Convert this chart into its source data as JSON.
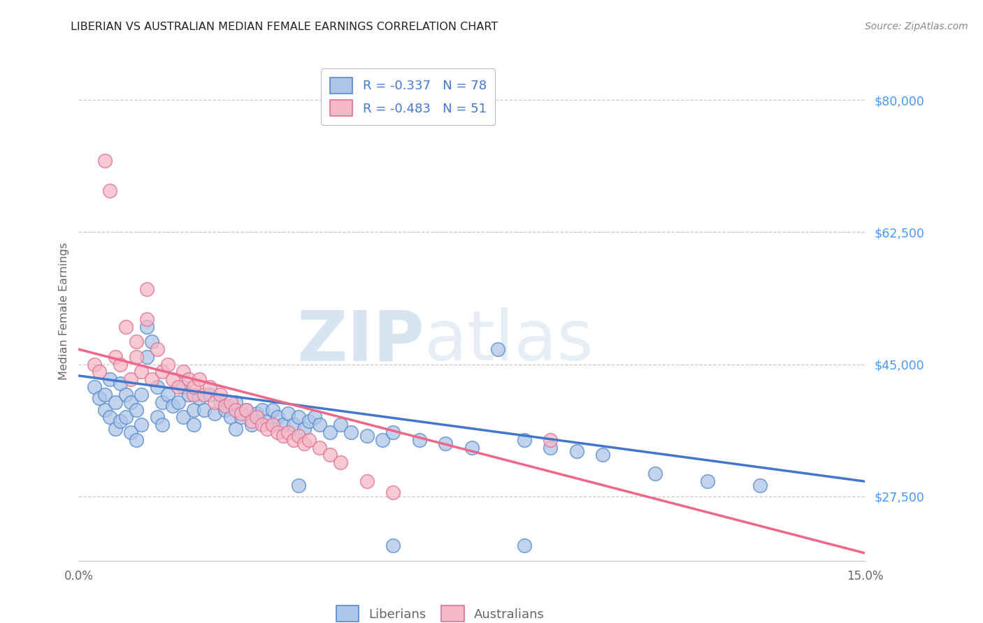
{
  "title": "LIBERIAN VS AUSTRALIAN MEDIAN FEMALE EARNINGS CORRELATION CHART",
  "source": "Source: ZipAtlas.com",
  "ylabel": "Median Female Earnings",
  "yticks": [
    27500,
    45000,
    62500,
    80000
  ],
  "ytick_labels": [
    "$27,500",
    "$45,000",
    "$62,500",
    "$80,000"
  ],
  "xmin": 0.0,
  "xmax": 0.15,
  "ymin": 19000,
  "ymax": 85000,
  "watermark_zip": "ZIP",
  "watermark_atlas": "atlas",
  "legend_blue_label": "R = -0.337   N = 78",
  "legend_pink_label": "R = -0.483   N = 51",
  "legend_bottom_blue": "Liberians",
  "legend_bottom_pink": "Australians",
  "blue_fill": "#aec6e8",
  "pink_fill": "#f4b8c8",
  "blue_edge": "#5588cc",
  "pink_edge": "#e07090",
  "blue_line": "#4477cc",
  "pink_line": "#ee6688",
  "blue_scatter": [
    [
      0.003,
      42000
    ],
    [
      0.004,
      40500
    ],
    [
      0.005,
      41000
    ],
    [
      0.005,
      39000
    ],
    [
      0.006,
      43000
    ],
    [
      0.006,
      38000
    ],
    [
      0.007,
      40000
    ],
    [
      0.007,
      36500
    ],
    [
      0.008,
      42500
    ],
    [
      0.008,
      37500
    ],
    [
      0.009,
      41000
    ],
    [
      0.009,
      38000
    ],
    [
      0.01,
      40000
    ],
    [
      0.01,
      36000
    ],
    [
      0.011,
      39000
    ],
    [
      0.011,
      35000
    ],
    [
      0.012,
      41000
    ],
    [
      0.012,
      37000
    ],
    [
      0.013,
      50000
    ],
    [
      0.013,
      46000
    ],
    [
      0.014,
      48000
    ],
    [
      0.015,
      42000
    ],
    [
      0.015,
      38000
    ],
    [
      0.016,
      40000
    ],
    [
      0.016,
      37000
    ],
    [
      0.017,
      41000
    ],
    [
      0.018,
      39500
    ],
    [
      0.019,
      40000
    ],
    [
      0.02,
      38000
    ],
    [
      0.02,
      42000
    ],
    [
      0.021,
      41000
    ],
    [
      0.022,
      39000
    ],
    [
      0.022,
      37000
    ],
    [
      0.023,
      40500
    ],
    [
      0.024,
      39000
    ],
    [
      0.025,
      41000
    ],
    [
      0.026,
      38500
    ],
    [
      0.027,
      40000
    ],
    [
      0.028,
      39000
    ],
    [
      0.029,
      38000
    ],
    [
      0.03,
      40000
    ],
    [
      0.03,
      36500
    ],
    [
      0.031,
      38000
    ],
    [
      0.032,
      39000
    ],
    [
      0.033,
      37000
    ],
    [
      0.034,
      38500
    ],
    [
      0.035,
      39000
    ],
    [
      0.036,
      37500
    ],
    [
      0.037,
      39000
    ],
    [
      0.038,
      38000
    ],
    [
      0.039,
      37000
    ],
    [
      0.04,
      38500
    ],
    [
      0.041,
      37000
    ],
    [
      0.042,
      38000
    ],
    [
      0.043,
      36500
    ],
    [
      0.044,
      37500
    ],
    [
      0.045,
      38000
    ],
    [
      0.046,
      37000
    ],
    [
      0.048,
      36000
    ],
    [
      0.05,
      37000
    ],
    [
      0.052,
      36000
    ],
    [
      0.055,
      35500
    ],
    [
      0.058,
      35000
    ],
    [
      0.06,
      36000
    ],
    [
      0.065,
      35000
    ],
    [
      0.07,
      34500
    ],
    [
      0.075,
      34000
    ],
    [
      0.08,
      47000
    ],
    [
      0.085,
      35000
    ],
    [
      0.09,
      34000
    ],
    [
      0.095,
      33500
    ],
    [
      0.1,
      33000
    ],
    [
      0.11,
      30500
    ],
    [
      0.12,
      29500
    ],
    [
      0.13,
      29000
    ],
    [
      0.042,
      29000
    ],
    [
      0.06,
      21000
    ],
    [
      0.085,
      21000
    ]
  ],
  "pink_scatter": [
    [
      0.003,
      45000
    ],
    [
      0.004,
      44000
    ],
    [
      0.005,
      72000
    ],
    [
      0.006,
      68000
    ],
    [
      0.007,
      46000
    ],
    [
      0.008,
      45000
    ],
    [
      0.009,
      50000
    ],
    [
      0.01,
      43000
    ],
    [
      0.011,
      48000
    ],
    [
      0.011,
      46000
    ],
    [
      0.012,
      44000
    ],
    [
      0.013,
      55000
    ],
    [
      0.013,
      51000
    ],
    [
      0.014,
      43000
    ],
    [
      0.015,
      47000
    ],
    [
      0.016,
      44000
    ],
    [
      0.017,
      45000
    ],
    [
      0.018,
      43000
    ],
    [
      0.019,
      42000
    ],
    [
      0.02,
      44000
    ],
    [
      0.021,
      43000
    ],
    [
      0.022,
      41000
    ],
    [
      0.022,
      42000
    ],
    [
      0.023,
      43000
    ],
    [
      0.024,
      41000
    ],
    [
      0.025,
      42000
    ],
    [
      0.026,
      40000
    ],
    [
      0.027,
      41000
    ],
    [
      0.028,
      39500
    ],
    [
      0.029,
      40000
    ],
    [
      0.03,
      39000
    ],
    [
      0.031,
      38500
    ],
    [
      0.032,
      39000
    ],
    [
      0.033,
      37500
    ],
    [
      0.034,
      38000
    ],
    [
      0.035,
      37000
    ],
    [
      0.036,
      36500
    ],
    [
      0.037,
      37000
    ],
    [
      0.038,
      36000
    ],
    [
      0.039,
      35500
    ],
    [
      0.04,
      36000
    ],
    [
      0.041,
      35000
    ],
    [
      0.042,
      35500
    ],
    [
      0.043,
      34500
    ],
    [
      0.044,
      35000
    ],
    [
      0.046,
      34000
    ],
    [
      0.048,
      33000
    ],
    [
      0.05,
      32000
    ],
    [
      0.055,
      29500
    ],
    [
      0.06,
      28000
    ],
    [
      0.09,
      35000
    ]
  ],
  "blue_trend_x": [
    0.0,
    0.15
  ],
  "blue_trend_y": [
    43500,
    29500
  ],
  "pink_trend_x": [
    0.0,
    0.15
  ],
  "pink_trend_y": [
    47000,
    20000
  ],
  "background_color": "#ffffff",
  "grid_color": "#c8c8c8",
  "title_color": "#222222",
  "title_fontsize": 11.5,
  "axis_label_color": "#666666",
  "ytick_color": "#4499ff",
  "source_color": "#888888",
  "source_fontstyle": "italic"
}
